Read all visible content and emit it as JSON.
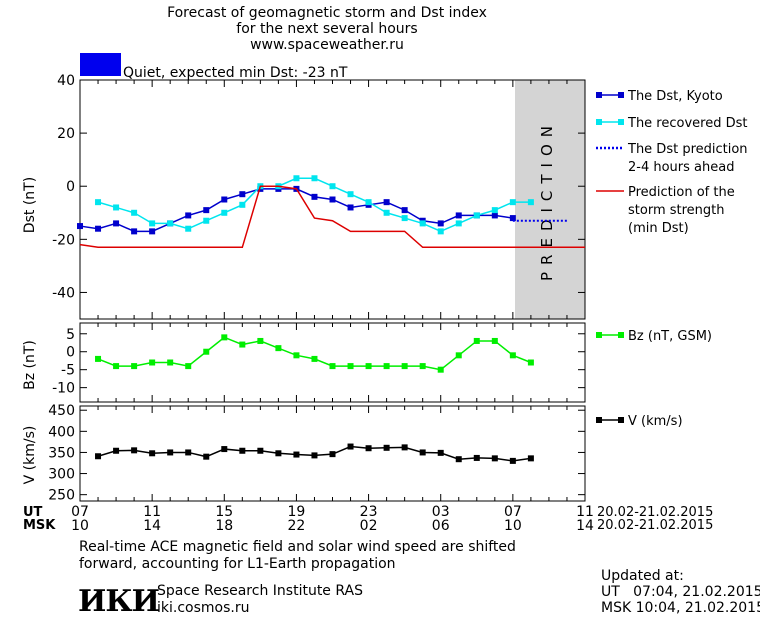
{
  "header": {
    "title_line1": "Forecast of geomagnetic storm and Dst index",
    "title_line2": "for the next several hours",
    "site": "www.spaceweather.ru",
    "status_text": "Quiet, expected min Dst: -23 nT",
    "status_color": "#0000ee"
  },
  "prediction_label": "PREDICTION",
  "axis_labels": {
    "ut": "UT",
    "msk": "MSK",
    "ut_dates": "20.02-21.02.2015",
    "msk_dates": "20.02-21.02.2015"
  },
  "colors": {
    "dst_kyoto": "#0000cc",
    "dst_recovered": "#00e5ee",
    "dst_prediction": "#0000ee",
    "storm_strength": "#dd0000",
    "bz": "#00ee00",
    "v": "#000000",
    "prediction_zone": "#d4d4d4"
  },
  "chart_data": [
    {
      "type": "line",
      "ylabel": "Dst (nT)",
      "ylim": [
        -50,
        40
      ],
      "yticks": [
        -40,
        -20,
        0,
        20,
        40
      ],
      "xlim": [
        7,
        35
      ],
      "legend_placement": "right",
      "series": [
        {
          "name": "The Dst, Kyoto",
          "marker": "square",
          "x": [
            7,
            8,
            9,
            10,
            11,
            12,
            13,
            14,
            15,
            16,
            17,
            18,
            19,
            20,
            21,
            22,
            23,
            24,
            25,
            26,
            27,
            28,
            29,
            30,
            31
          ],
          "y": [
            -15,
            -16,
            -14,
            -17,
            -17,
            -14,
            -11,
            -9,
            -5,
            -3,
            -1,
            -1,
            -1,
            -4,
            -5,
            -8,
            -7,
            -6,
            -9,
            -13,
            -14,
            -11,
            -11,
            -11,
            -12
          ]
        },
        {
          "name": "The recovered Dst",
          "marker": "square",
          "x": [
            8,
            9,
            10,
            11,
            12,
            13,
            14,
            15,
            16,
            17,
            18,
            19,
            20,
            21,
            22,
            23,
            24,
            25,
            26,
            27,
            28,
            29,
            30,
            31,
            32
          ],
          "y": [
            -6,
            -8,
            -10,
            -14,
            -14,
            -16,
            -13,
            -10,
            -7,
            0,
            0,
            3,
            3,
            0,
            -3,
            -6,
            -10,
            -12,
            -14,
            -17,
            -14,
            -11,
            -9,
            -6,
            -6
          ]
        },
        {
          "name": "The Dst prediction 2-4 hours ahead",
          "style": "dotted",
          "x": [
            31,
            32,
            33,
            34
          ],
          "y": [
            -13,
            -13,
            -13,
            -13
          ]
        },
        {
          "name": "Prediction of the storm strength (min Dst)",
          "style": "step",
          "x": [
            7,
            8,
            16,
            17,
            18,
            19,
            20,
            21,
            22,
            23,
            24,
            25,
            26,
            27,
            28,
            29,
            30,
            31,
            32,
            33,
            35
          ],
          "y": [
            -22,
            -23,
            -23,
            0,
            0,
            -1,
            -12,
            -13,
            -17,
            -17,
            -17,
            -17,
            -23,
            -23,
            -23,
            -23,
            -23,
            -23,
            -23,
            -23,
            -23
          ]
        }
      ]
    },
    {
      "type": "line",
      "ylabel": "Bz (nT)",
      "ylim": [
        -14,
        8
      ],
      "yticks": [
        -10,
        -5,
        0,
        5
      ],
      "xlim": [
        7,
        35
      ],
      "series": [
        {
          "name": "Bz (nT, GSM)",
          "marker": "square",
          "x": [
            8,
            9,
            10,
            11,
            12,
            13,
            14,
            15,
            16,
            17,
            18,
            19,
            20,
            21,
            22,
            23,
            24,
            25,
            26,
            27,
            28,
            29,
            30,
            31,
            32
          ],
          "y": [
            -2,
            -4,
            -4,
            -3,
            -3,
            -4,
            0,
            4,
            2,
            3,
            1,
            -1,
            -2,
            -4,
            -4,
            -4,
            -4,
            -4,
            -4,
            -5,
            -1,
            3,
            3,
            -1,
            -3
          ]
        }
      ]
    },
    {
      "type": "line",
      "ylabel": "V (km/s)",
      "ylim": [
        235,
        460
      ],
      "yticks": [
        250,
        300,
        350,
        400,
        450
      ],
      "xlim": [
        7,
        35
      ],
      "series": [
        {
          "name": "V (km/s)",
          "marker": "square",
          "x": [
            8,
            9,
            10,
            11,
            12,
            13,
            14,
            15,
            16,
            17,
            18,
            19,
            20,
            21,
            22,
            23,
            24,
            25,
            26,
            27,
            28,
            29,
            30,
            31,
            32
          ],
          "y": [
            341,
            354,
            355,
            348,
            350,
            350,
            340,
            358,
            354,
            354,
            348,
            345,
            343,
            346,
            364,
            360,
            361,
            362,
            350,
            349,
            334,
            337,
            336,
            330,
            336
          ]
        }
      ]
    }
  ],
  "x_axis": {
    "ut_ticks": [
      "07",
      "11",
      "15",
      "19",
      "23",
      "03",
      "07",
      "11"
    ],
    "msk_ticks": [
      "10",
      "14",
      "18",
      "22",
      "02",
      "06",
      "10",
      "14"
    ]
  },
  "footer": {
    "note_line1": "Real-time ACE magnetic field and solar wind speed are shifted",
    "note_line2": "forward, accounting for L1-Earth propagation",
    "logo_text": "ИКИ",
    "institute": "Space Research Institute RAS",
    "institute_url": "iki.cosmos.ru",
    "updated_label": "Updated at:",
    "updated_ut": "UT   07:04, 21.02.2015",
    "updated_msk": "MSK 10:04, 21.02.2015"
  }
}
